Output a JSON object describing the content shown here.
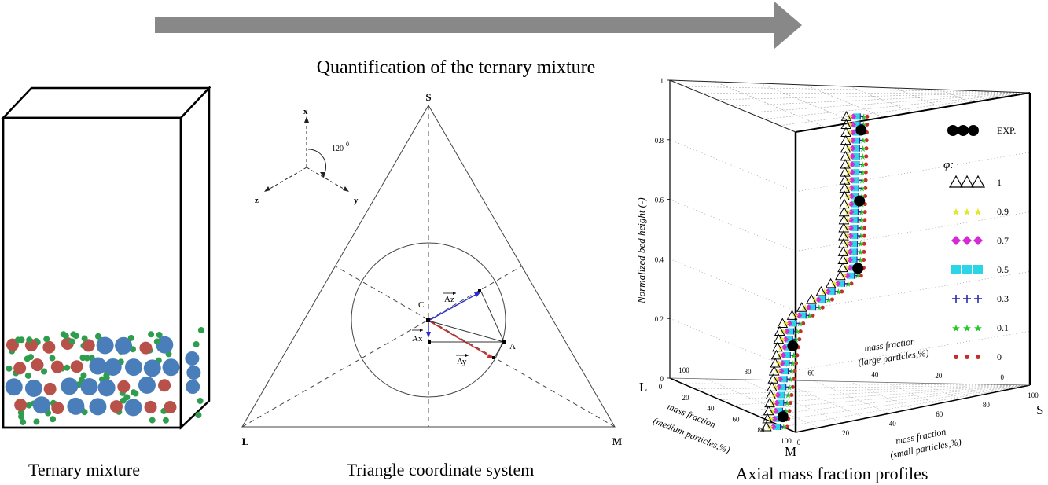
{
  "header": {
    "title": "Quantification of the ternary mixture",
    "arrow_color": "#888888"
  },
  "panel_left": {
    "caption": "Ternary mixture",
    "colors": {
      "large": "#4a7ebb",
      "medium": "#b9514b",
      "small": "#2e9e4e"
    }
  },
  "panel_middle": {
    "caption": "Triangle coordinate system",
    "vertices": {
      "top": "S",
      "left": "L",
      "right": "M"
    },
    "axes": {
      "x": "x",
      "y": "y",
      "z": "z",
      "angle": "120",
      "angle_unit": "0"
    },
    "points": {
      "center": "C",
      "point": "A"
    },
    "vectors": {
      "az": "Az",
      "ax": "Ax",
      "ay": "Ay"
    },
    "vector_colors": {
      "az": "#2a2ad0",
      "ax": "#2a2ad0",
      "ay": "#d02a2a"
    }
  },
  "panel_right": {
    "caption": "Axial mass fraction profiles",
    "chart_data": {
      "type": "scatter",
      "title": "",
      "zlabel": "Normalized bed height (-)",
      "z_ticks": [
        "0",
        "0.2",
        "0.4",
        "0.6",
        "0.8",
        "1"
      ],
      "axes_corner_labels": {
        "large": "L",
        "small": "S",
        "medium": "M"
      },
      "large_axis": {
        "label_line1": "mass fraction",
        "label_line2": "(large particles,%)",
        "ticks": [
          "100",
          "80",
          "60",
          "40",
          "20",
          "0"
        ]
      },
      "medium_axis": {
        "label_line1": "mass fraction",
        "label_line2": "(medium particles,%)",
        "ticks": [
          "0",
          "20",
          "40",
          "60",
          "80",
          "100"
        ]
      },
      "small_axis": {
        "label_line1": "mass fraction",
        "label_line2": "(small particles,%)",
        "ticks": [
          "0",
          "20",
          "40",
          "60",
          "80",
          "100"
        ]
      },
      "legend": {
        "exp_label": "EXP.",
        "phi_label": "φ:",
        "entries": [
          {
            "label": "1",
            "marker": "triangle",
            "color": "#000000"
          },
          {
            "label": "0.9",
            "marker": "star",
            "color": "#e6e62a"
          },
          {
            "label": "0.7",
            "marker": "diamond",
            "color": "#d62ad6"
          },
          {
            "label": "0.5",
            "marker": "square",
            "color": "#2ad6e6"
          },
          {
            "label": "0.3",
            "marker": "plus",
            "color": "#2a2aa8"
          },
          {
            "label": "0.1",
            "marker": "star",
            "color": "#2ac92a"
          },
          {
            "label": "0",
            "marker": "dot",
            "color": "#c92a2a"
          }
        ]
      },
      "series_height_range": [
        0.0,
        0.92
      ],
      "exp_points_height": [
        0.03,
        0.24,
        0.47,
        0.67,
        0.88
      ]
    }
  }
}
